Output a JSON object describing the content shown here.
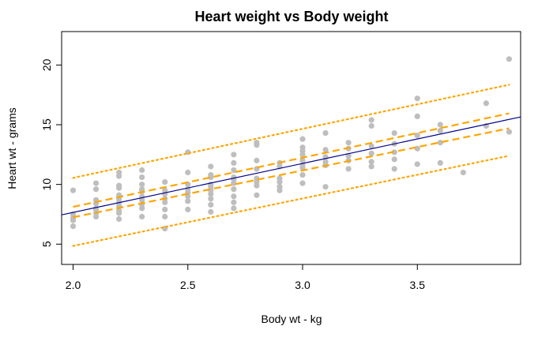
{
  "chart_data": {
    "type": "scatter",
    "title": "Heart weight vs Body weight",
    "xlabel": "Body wt - kg",
    "ylabel": "Heart wt - grams",
    "xlim": [
      1.95,
      3.95
    ],
    "ylim": [
      3.3,
      22.8
    ],
    "x_ticks": [
      "2.0",
      "2.5",
      "3.0",
      "3.5"
    ],
    "y_ticks": [
      "5",
      "10",
      "15",
      "20"
    ],
    "grid": false,
    "legend": "none",
    "colors": {
      "points": "#bebebe",
      "fit_line": "#00008b",
      "confidence_band": "#ffa500",
      "prediction_band": "#ffa500"
    },
    "points": [
      [
        2.0,
        9.5
      ],
      [
        2.0,
        7.5
      ],
      [
        2.0,
        7.0
      ],
      [
        2.0,
        6.5
      ],
      [
        2.0,
        7.2
      ],
      [
        2.1,
        10.1
      ],
      [
        2.1,
        9.6
      ],
      [
        2.1,
        8.7
      ],
      [
        2.1,
        8.4
      ],
      [
        2.1,
        8.0
      ],
      [
        2.1,
        7.9
      ],
      [
        2.1,
        7.6
      ],
      [
        2.1,
        7.3
      ],
      [
        2.2,
        11.0
      ],
      [
        2.2,
        10.7
      ],
      [
        2.2,
        9.9
      ],
      [
        2.2,
        9.7
      ],
      [
        2.2,
        9.1
      ],
      [
        2.2,
        8.8
      ],
      [
        2.2,
        8.5
      ],
      [
        2.2,
        8.2
      ],
      [
        2.2,
        7.8
      ],
      [
        2.2,
        7.6
      ],
      [
        2.2,
        7.1
      ],
      [
        2.3,
        11.2
      ],
      [
        2.3,
        10.6
      ],
      [
        2.3,
        10.0
      ],
      [
        2.3,
        9.6
      ],
      [
        2.3,
        9.4
      ],
      [
        2.3,
        9.0
      ],
      [
        2.3,
        8.7
      ],
      [
        2.3,
        8.3
      ],
      [
        2.3,
        8.0
      ],
      [
        2.3,
        7.3
      ],
      [
        2.4,
        10.2
      ],
      [
        2.4,
        9.5
      ],
      [
        2.4,
        9.2
      ],
      [
        2.4,
        8.8
      ],
      [
        2.4,
        8.5
      ],
      [
        2.4,
        7.9
      ],
      [
        2.4,
        7.3
      ],
      [
        2.4,
        6.3
      ],
      [
        2.5,
        12.7
      ],
      [
        2.5,
        11.0
      ],
      [
        2.5,
        10.0
      ],
      [
        2.5,
        9.6
      ],
      [
        2.5,
        9.3
      ],
      [
        2.5,
        9.0
      ],
      [
        2.5,
        8.6
      ],
      [
        2.5,
        7.9
      ],
      [
        2.6,
        11.5
      ],
      [
        2.6,
        10.8
      ],
      [
        2.6,
        10.6
      ],
      [
        2.6,
        10.0
      ],
      [
        2.6,
        9.8
      ],
      [
        2.6,
        9.5
      ],
      [
        2.6,
        9.2
      ],
      [
        2.6,
        8.8
      ],
      [
        2.6,
        8.3
      ],
      [
        2.6,
        7.7
      ],
      [
        2.7,
        12.5
      ],
      [
        2.7,
        11.8
      ],
      [
        2.7,
        11.2
      ],
      [
        2.7,
        10.6
      ],
      [
        2.7,
        10.4
      ],
      [
        2.7,
        10.1
      ],
      [
        2.7,
        9.6
      ],
      [
        2.7,
        9.0
      ],
      [
        2.7,
        8.5
      ],
      [
        2.7,
        8.0
      ],
      [
        2.8,
        13.5
      ],
      [
        2.8,
        13.3
      ],
      [
        2.8,
        12.0
      ],
      [
        2.8,
        11.3
      ],
      [
        2.8,
        10.5
      ],
      [
        2.8,
        10.2
      ],
      [
        2.8,
        9.9
      ],
      [
        2.8,
        9.1
      ],
      [
        2.9,
        11.8
      ],
      [
        2.9,
        11.5
      ],
      [
        2.9,
        10.5
      ],
      [
        2.9,
        10.2
      ],
      [
        2.9,
        9.8
      ],
      [
        2.9,
        9.5
      ],
      [
        3.0,
        13.8
      ],
      [
        3.0,
        13.1
      ],
      [
        3.0,
        12.8
      ],
      [
        3.0,
        12.5
      ],
      [
        3.0,
        12.0
      ],
      [
        3.0,
        11.6
      ],
      [
        3.0,
        11.4
      ],
      [
        3.0,
        10.8
      ],
      [
        3.0,
        10.1
      ],
      [
        3.1,
        14.3
      ],
      [
        3.1,
        12.9
      ],
      [
        3.1,
        12.3
      ],
      [
        3.1,
        11.9
      ],
      [
        3.1,
        11.6
      ],
      [
        3.1,
        9.8
      ],
      [
        3.2,
        13.5
      ],
      [
        3.2,
        13.0
      ],
      [
        3.2,
        12.4
      ],
      [
        3.2,
        12.0
      ],
      [
        3.2,
        11.3
      ],
      [
        3.3,
        15.4
      ],
      [
        3.3,
        14.9
      ],
      [
        3.3,
        13.2
      ],
      [
        3.3,
        12.6
      ],
      [
        3.3,
        11.9
      ],
      [
        3.3,
        11.5
      ],
      [
        3.4,
        14.3
      ],
      [
        3.4,
        13.4
      ],
      [
        3.4,
        12.7
      ],
      [
        3.4,
        12.1
      ],
      [
        3.4,
        11.3
      ],
      [
        3.5,
        17.2
      ],
      [
        3.5,
        15.7
      ],
      [
        3.5,
        14.1
      ],
      [
        3.5,
        13.0
      ],
      [
        3.5,
        11.7
      ],
      [
        3.6,
        15.0
      ],
      [
        3.6,
        14.5
      ],
      [
        3.6,
        13.5
      ],
      [
        3.6,
        11.8
      ],
      [
        3.7,
        11.0
      ],
      [
        3.8,
        16.8
      ],
      [
        3.8,
        14.9
      ],
      [
        3.9,
        20.5
      ],
      [
        3.9,
        14.4
      ]
    ],
    "series": [
      {
        "style": "solid",
        "x": [
          1.95,
          3.95
        ],
        "y": [
          7.45,
          15.65
        ]
      },
      {
        "style": "dashed",
        "x": [
          2.0,
          3.9
        ],
        "y": [
          8.12,
          15.95
        ]
      },
      {
        "style": "dashed",
        "x": [
          2.0,
          3.9
        ],
        "y": [
          7.25,
          14.7
        ]
      },
      {
        "style": "dotted",
        "x": [
          2.0,
          3.9
        ],
        "y": [
          10.55,
          18.35
        ]
      },
      {
        "style": "dotted",
        "x": [
          2.0,
          3.9
        ],
        "y": [
          4.85,
          12.4
        ]
      }
    ]
  }
}
